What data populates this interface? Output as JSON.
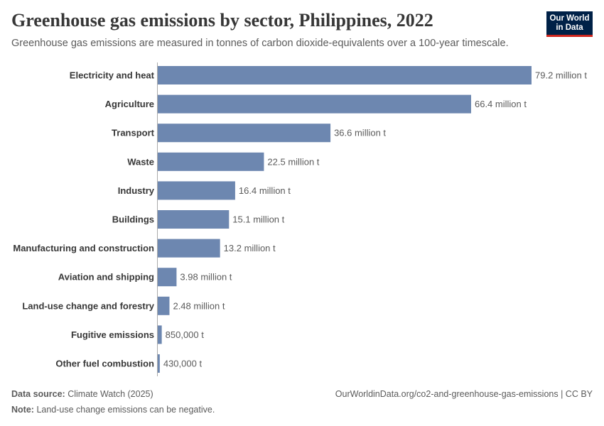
{
  "header": {
    "title": "Greenhouse gas emissions by sector, Philippines, 2022",
    "subtitle": "Greenhouse gas emissions are measured in tonnes of carbon dioxide-equivalents over a 100-year timescale."
  },
  "logo": {
    "line1": "Our World",
    "line2": "in Data"
  },
  "footer": {
    "source_label": "Data source:",
    "source_value": "Climate Watch (2025)",
    "note_label": "Note:",
    "note_value": "Land-use change emissions can be negative.",
    "link": "OurWorldinData.org/co2-and-greenhouse-gas-emissions | CC BY"
  },
  "colors": {
    "bar": "#6d87b0",
    "axis": "#a9a9a9",
    "label": "#373737",
    "value": "#5b5b5b"
  },
  "chart_data": {
    "type": "bar",
    "orientation": "horizontal",
    "unit": "t CO2e",
    "categories": [
      "Electricity and heat",
      "Agriculture",
      "Transport",
      "Waste",
      "Industry",
      "Buildings",
      "Manufacturing and construction",
      "Aviation and shipping",
      "Land-use change and forestry",
      "Fugitive emissions",
      "Other fuel combustion"
    ],
    "values": [
      79200000,
      66400000,
      36600000,
      22500000,
      16400000,
      15100000,
      13200000,
      3980000,
      2480000,
      850000,
      430000
    ],
    "value_labels": [
      "79.2 million t",
      "66.4 million t",
      "36.6 million t",
      "22.5 million t",
      "16.4 million t",
      "15.1 million t",
      "13.2 million t",
      "3.98 million t",
      "2.48 million t",
      "850,000 t",
      "430,000 t"
    ],
    "xlim": [
      0,
      79200000
    ]
  }
}
